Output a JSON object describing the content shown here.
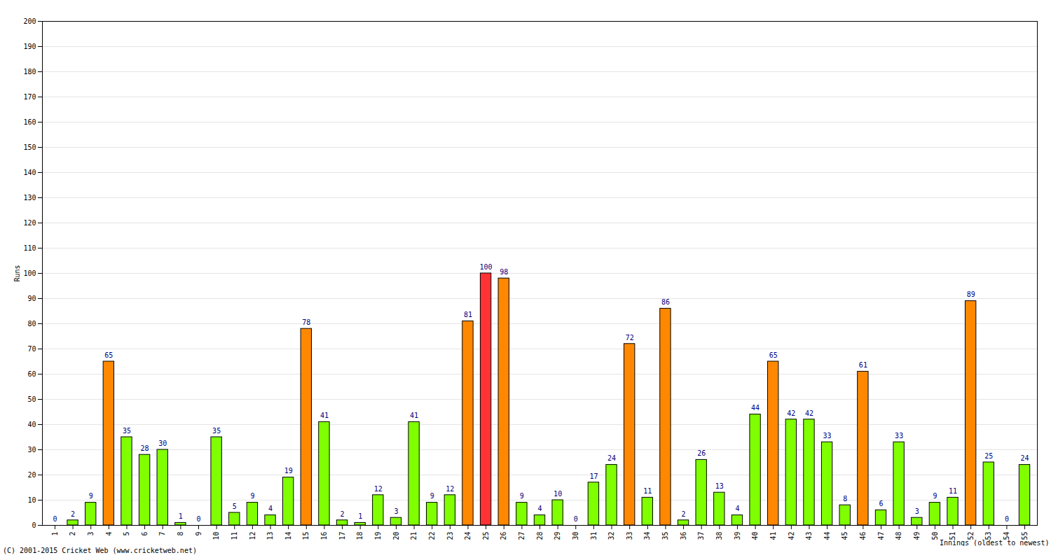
{
  "chart_data": {
    "type": "bar",
    "x_label": "Innings (oldest to newest)",
    "y_label": "Runs",
    "caption": "(C) 2001-2015 Cricket Web (www.cricketweb.net)",
    "categories": [
      "1",
      "2",
      "3",
      "4",
      "5",
      "6",
      "7",
      "8",
      "9",
      "10",
      "11",
      "12",
      "13",
      "14",
      "15",
      "16",
      "17",
      "18",
      "19",
      "20",
      "21",
      "22",
      "23",
      "24",
      "25",
      "26",
      "27",
      "28",
      "29",
      "30",
      "31",
      "32",
      "33",
      "34",
      "35",
      "36",
      "37",
      "38",
      "39",
      "40",
      "41",
      "42",
      "43",
      "44",
      "45",
      "46",
      "47",
      "48",
      "49",
      "50",
      "51",
      "52",
      "53",
      "54",
      "55"
    ],
    "values": [
      0,
      2,
      9,
      65,
      35,
      28,
      30,
      1,
      0,
      35,
      5,
      9,
      4,
      19,
      78,
      41,
      2,
      1,
      12,
      3,
      41,
      9,
      12,
      81,
      100,
      98,
      9,
      4,
      10,
      0,
      17,
      24,
      72,
      11,
      86,
      2,
      26,
      13,
      4,
      44,
      65,
      42,
      42,
      33,
      8,
      61,
      6,
      33,
      3,
      9,
      11,
      89,
      25,
      0,
      24
    ],
    "colors": [
      "#80ff00",
      "#80ff00",
      "#80ff00",
      "#ff8800",
      "#80ff00",
      "#80ff00",
      "#80ff00",
      "#80ff00",
      "#80ff00",
      "#80ff00",
      "#80ff00",
      "#80ff00",
      "#80ff00",
      "#80ff00",
      "#ff8800",
      "#80ff00",
      "#80ff00",
      "#80ff00",
      "#80ff00",
      "#80ff00",
      "#80ff00",
      "#80ff00",
      "#80ff00",
      "#ff8800",
      "#ff3333",
      "#ff8800",
      "#80ff00",
      "#80ff00",
      "#80ff00",
      "#80ff00",
      "#80ff00",
      "#80ff00",
      "#ff8800",
      "#80ff00",
      "#ff8800",
      "#80ff00",
      "#80ff00",
      "#80ff00",
      "#80ff00",
      "#80ff00",
      "#ff8800",
      "#80ff00",
      "#80ff00",
      "#80ff00",
      "#80ff00",
      "#ff8800",
      "#80ff00",
      "#80ff00",
      "#80ff00",
      "#80ff00",
      "#80ff00",
      "#ff8800",
      "#80ff00",
      "#80ff00",
      "#80ff00"
    ],
    "ylim": [
      0,
      200
    ],
    "yticks": [
      0,
      10,
      20,
      30,
      40,
      50,
      60,
      70,
      80,
      90,
      100,
      110,
      120,
      130,
      140,
      150,
      160,
      170,
      180,
      190,
      200
    ],
    "grid": true,
    "data_labels": true
  }
}
